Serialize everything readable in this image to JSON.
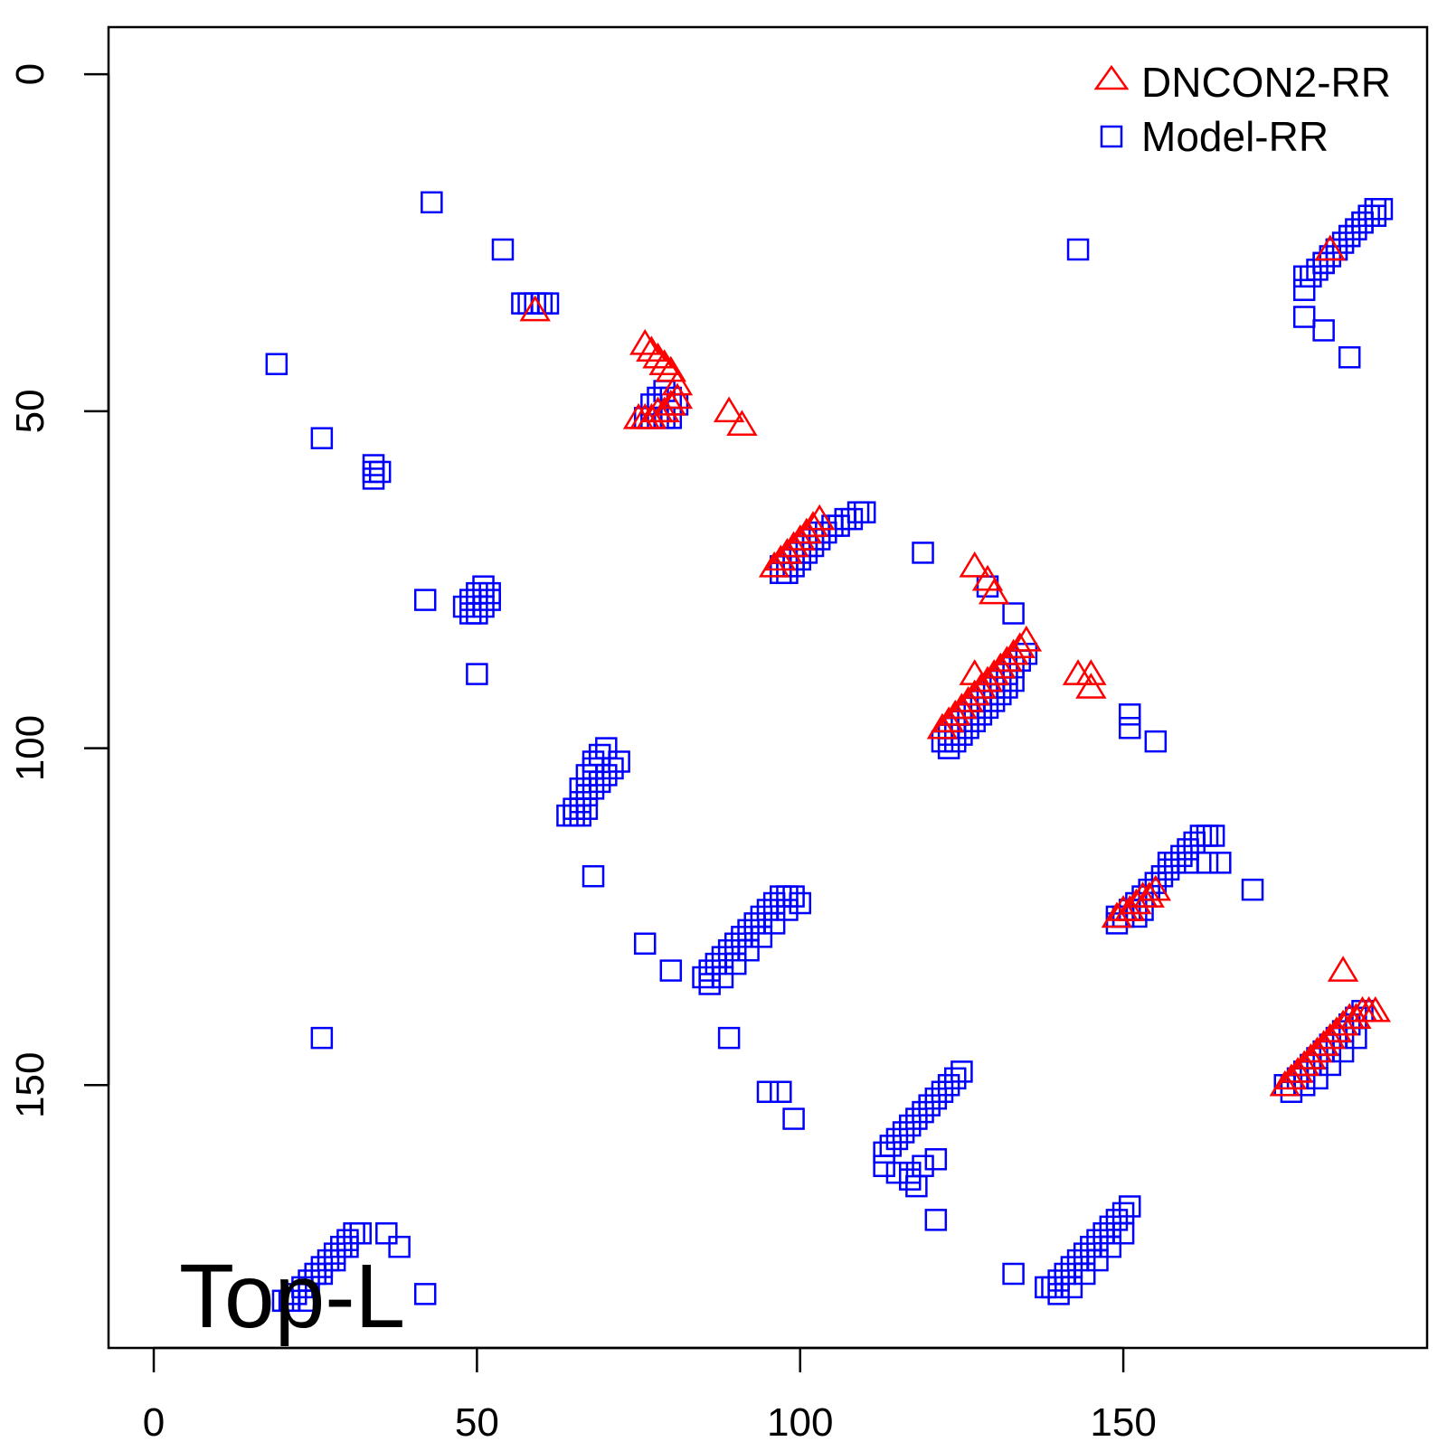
{
  "chart_data": {
    "type": "scatter",
    "title": "",
    "xlabel": "",
    "ylabel": "",
    "xlim": [
      -7,
      197
    ],
    "ylim": [
      -7,
      189
    ],
    "y_reversed": true,
    "x_ticks": [
      "0",
      "50",
      "100",
      "150"
    ],
    "y_ticks": [
      "0",
      "50",
      "100",
      "150"
    ],
    "annotation": "Top-L",
    "legend_position": "top-right",
    "colors": {
      "dncon2": "#ff0000",
      "model": "#0000ff"
    },
    "series": [
      {
        "name": "DNCON2-RR",
        "marker": "triangle-open",
        "x": [
          59,
          76,
          77,
          78,
          79,
          80,
          81,
          81,
          80,
          79,
          78,
          77,
          76,
          75,
          89,
          91,
          96,
          97,
          98,
          99,
          100,
          101,
          102,
          103,
          127,
          129,
          130,
          122,
          123,
          124,
          125,
          126,
          127,
          128,
          129,
          130,
          131,
          132,
          133,
          134,
          135,
          127,
          143,
          145,
          145,
          149,
          150,
          151,
          152,
          153,
          154,
          155,
          182,
          184,
          175,
          176,
          177,
          178,
          179,
          180,
          181,
          182,
          183,
          184,
          185,
          186,
          187,
          188,
          189
        ],
        "y": [
          35,
          40,
          41,
          42,
          43,
          44,
          46,
          48,
          49,
          50,
          50,
          51,
          51,
          51,
          50,
          52,
          73,
          72,
          71,
          70,
          69,
          68,
          67,
          66,
          73,
          75,
          77,
          97,
          96,
          95,
          94,
          93,
          92,
          91,
          90,
          89,
          88,
          87,
          86,
          85,
          84,
          89,
          89,
          89,
          91,
          125,
          124,
          124,
          123,
          122,
          122,
          121,
          26,
          133,
          150,
          149,
          148,
          147,
          146,
          145,
          144,
          143,
          142,
          141,
          140,
          140,
          139,
          139,
          139
        ]
      },
      {
        "name": "Model-RR",
        "marker": "square-open",
        "x": [
          43,
          54,
          57,
          58,
          59,
          60,
          61,
          19,
          26,
          34,
          34,
          34,
          35,
          76,
          77,
          78,
          79,
          80,
          77,
          78,
          79,
          80,
          81,
          42,
          48,
          49,
          50,
          51,
          52,
          49,
          50,
          51,
          52,
          50,
          97,
          98,
          99,
          100,
          101,
          102,
          103,
          104,
          105,
          106,
          107,
          108,
          109,
          110,
          97,
          98,
          99,
          100,
          101,
          102,
          103,
          119,
          129,
          133,
          122,
          123,
          124,
          125,
          126,
          127,
          128,
          129,
          130,
          131,
          132,
          133,
          134,
          135,
          123,
          124,
          125,
          126,
          127,
          128,
          129,
          130,
          131,
          132,
          133,
          151,
          151,
          155,
          143,
          64,
          65,
          66,
          67,
          68,
          69,
          70,
          71,
          72,
          66,
          67,
          68,
          69,
          70,
          65,
          66,
          67,
          68,
          68,
          76,
          80,
          85,
          86,
          87,
          88,
          89,
          90,
          91,
          92,
          93,
          94,
          95,
          96,
          97,
          98,
          99,
          100,
          86,
          88,
          90,
          92,
          94,
          96,
          98,
          89,
          95,
          97,
          99,
          26,
          113,
          114,
          115,
          116,
          117,
          118,
          119,
          120,
          121,
          122,
          123,
          124,
          125,
          113,
          115,
          117,
          119,
          121,
          117,
          118,
          121,
          133,
          138,
          139,
          140,
          141,
          142,
          143,
          144,
          145,
          146,
          147,
          148,
          149,
          150,
          151,
          140,
          142,
          144,
          146,
          148,
          150,
          149,
          150,
          151,
          152,
          153,
          154,
          155,
          156,
          157,
          158,
          159,
          160,
          161,
          162,
          163,
          164,
          165,
          157,
          160,
          163,
          170,
          149,
          150,
          151,
          152,
          153,
          175,
          176,
          177,
          178,
          179,
          180,
          181,
          182,
          183,
          184,
          185,
          186,
          187,
          176,
          178,
          180,
          182,
          184,
          186,
          178,
          178,
          179,
          180,
          181,
          182,
          183,
          184,
          185,
          186,
          187,
          188,
          189,
          190,
          181,
          183,
          185,
          187,
          189,
          178,
          181,
          185,
          20,
          21,
          22,
          23,
          24,
          25,
          26,
          27,
          28,
          29,
          30,
          31,
          32,
          36,
          38,
          42,
          24,
          26,
          28,
          30
        ],
        "y": [
          19,
          26,
          34,
          34,
          34,
          34,
          34,
          43,
          54,
          58,
          59,
          60,
          59,
          51,
          51,
          51,
          51,
          51,
          49,
          48,
          47,
          48,
          49,
          78,
          79,
          78,
          77,
          76,
          77,
          80,
          80,
          79,
          78,
          89,
          73,
          73,
          72,
          71,
          70,
          69,
          68,
          68,
          67,
          67,
          66,
          66,
          65,
          65,
          74,
          74,
          73,
          72,
          71,
          70,
          69,
          71,
          76,
          80,
          99,
          98,
          97,
          96,
          95,
          94,
          93,
          92,
          91,
          90,
          89,
          88,
          87,
          86,
          100,
          99,
          98,
          97,
          96,
          95,
          94,
          93,
          92,
          91,
          90,
          95,
          97,
          99,
          26,
          110,
          109,
          108,
          107,
          106,
          105,
          104,
          103,
          102,
          106,
          104,
          102,
          101,
          100,
          110,
          110,
          109,
          103,
          119,
          129,
          133,
          134,
          133,
          132,
          131,
          130,
          129,
          128,
          127,
          126,
          125,
          124,
          123,
          122,
          122,
          122,
          123,
          135,
          134,
          132,
          130,
          128,
          126,
          124,
          143,
          151,
          151,
          155,
          143,
          160,
          159,
          158,
          157,
          156,
          155,
          154,
          153,
          152,
          151,
          150,
          149,
          148,
          162,
          163,
          163,
          162,
          161,
          164,
          165,
          170,
          178,
          180,
          180,
          179,
          178,
          177,
          176,
          175,
          174,
          173,
          172,
          171,
          170,
          169,
          168,
          181,
          180,
          178,
          176,
          174,
          172,
          125,
          125,
          124,
          123,
          122,
          121,
          120,
          119,
          118,
          117,
          116,
          115,
          114,
          113,
          113,
          113,
          117,
          117,
          117,
          117,
          121,
          126,
          125,
          124,
          125,
          124,
          150,
          150,
          149,
          148,
          147,
          146,
          145,
          144,
          143,
          142,
          141,
          140,
          139,
          151,
          150,
          149,
          147,
          145,
          143,
          30,
          32,
          30,
          29,
          28,
          27,
          26,
          25,
          24,
          23,
          22,
          21,
          20,
          20,
          28,
          26,
          24,
          22,
          21,
          36,
          38,
          42,
          182,
          182,
          181,
          180,
          179,
          178,
          177,
          176,
          175,
          174,
          173,
          172,
          172,
          172,
          174,
          181,
          182,
          178,
          176,
          174
        ]
      }
    ]
  }
}
